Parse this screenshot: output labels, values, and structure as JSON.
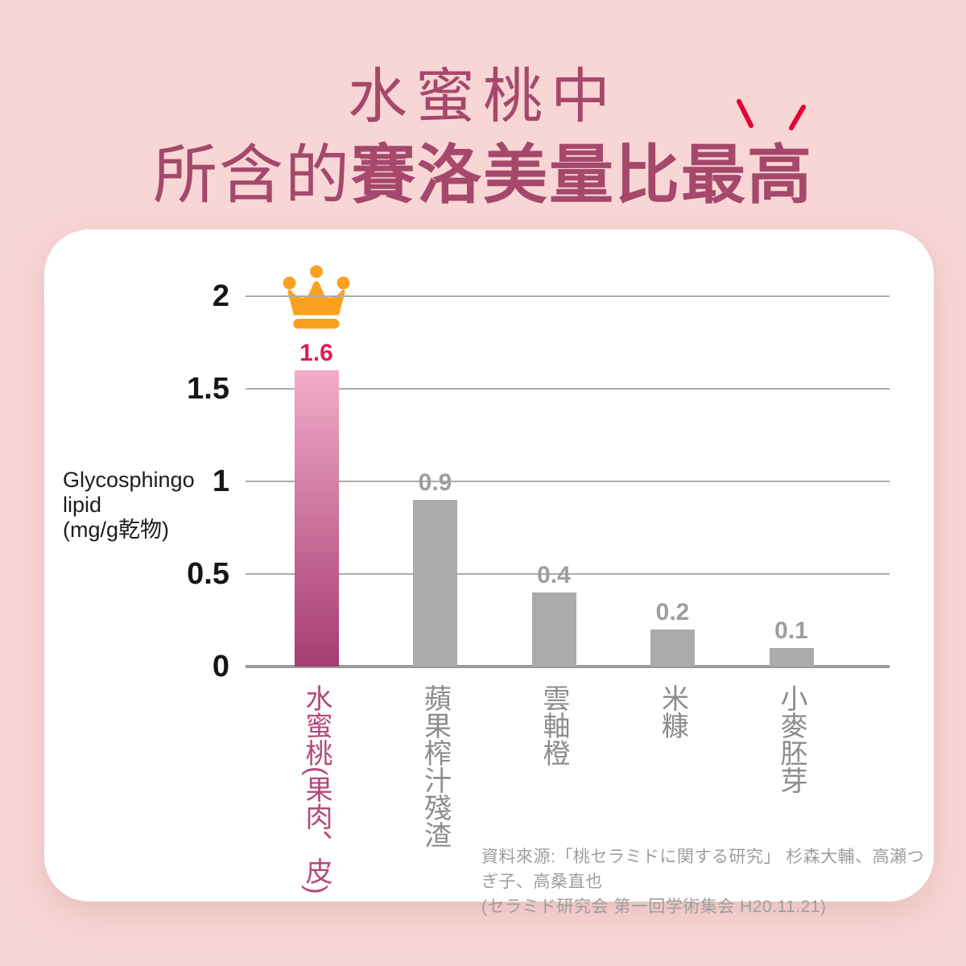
{
  "title": {
    "line1": "水蜜桃中",
    "line2_regular": "所含的",
    "line2_bold": "賽洛美量比最高"
  },
  "chart_data": {
    "type": "bar",
    "categories": [
      "水蜜桃(果肉、皮)",
      "蘋果榨汁殘渣",
      "雲軸橙",
      "米糠",
      "小麥胚芽"
    ],
    "values": [
      1.6,
      0.9,
      0.4,
      0.2,
      0.1
    ],
    "value_labels": [
      "1.6",
      "0.9",
      "0.4",
      "0.2",
      "0.1"
    ],
    "highlight_index": 0,
    "ylabel_lines": [
      "Glycosphingo",
      "lipid",
      "(mg/g乾物)"
    ],
    "ylabel": "Glycosphingo lipid (mg/g乾物)",
    "yticks": [
      0,
      0.5,
      1,
      1.5,
      2
    ],
    "ylim": [
      0,
      2
    ],
    "grid": true,
    "legend": null
  },
  "source": {
    "line1": "資料來源:「桃セラミドに関する研究」 杉森大輔、高瀬つぎ子、高桑直也",
    "line2": "(セラミド研究会 第一回学術集会 H20.11.21)"
  },
  "icons": {
    "crown": "crown-icon",
    "emphasis": "emphasis-marks-icon"
  },
  "colors": {
    "background": "#F8D6D5",
    "card": "#FFFFFF",
    "title": "#A5486B",
    "highlight_bar_top": "#F2ACC8",
    "highlight_bar_bottom": "#A53B72",
    "highlight_value": "#E31B59",
    "highlight_label": "#B34A7B",
    "bar_gray": "#ABABAB",
    "value_gray": "#9E9E9E",
    "label_gray": "#8D8D8D",
    "crown": "#F9A11E",
    "emphasis_red": "#E40138",
    "axis": "#9B9B9B",
    "grid": "#ACACAC"
  }
}
